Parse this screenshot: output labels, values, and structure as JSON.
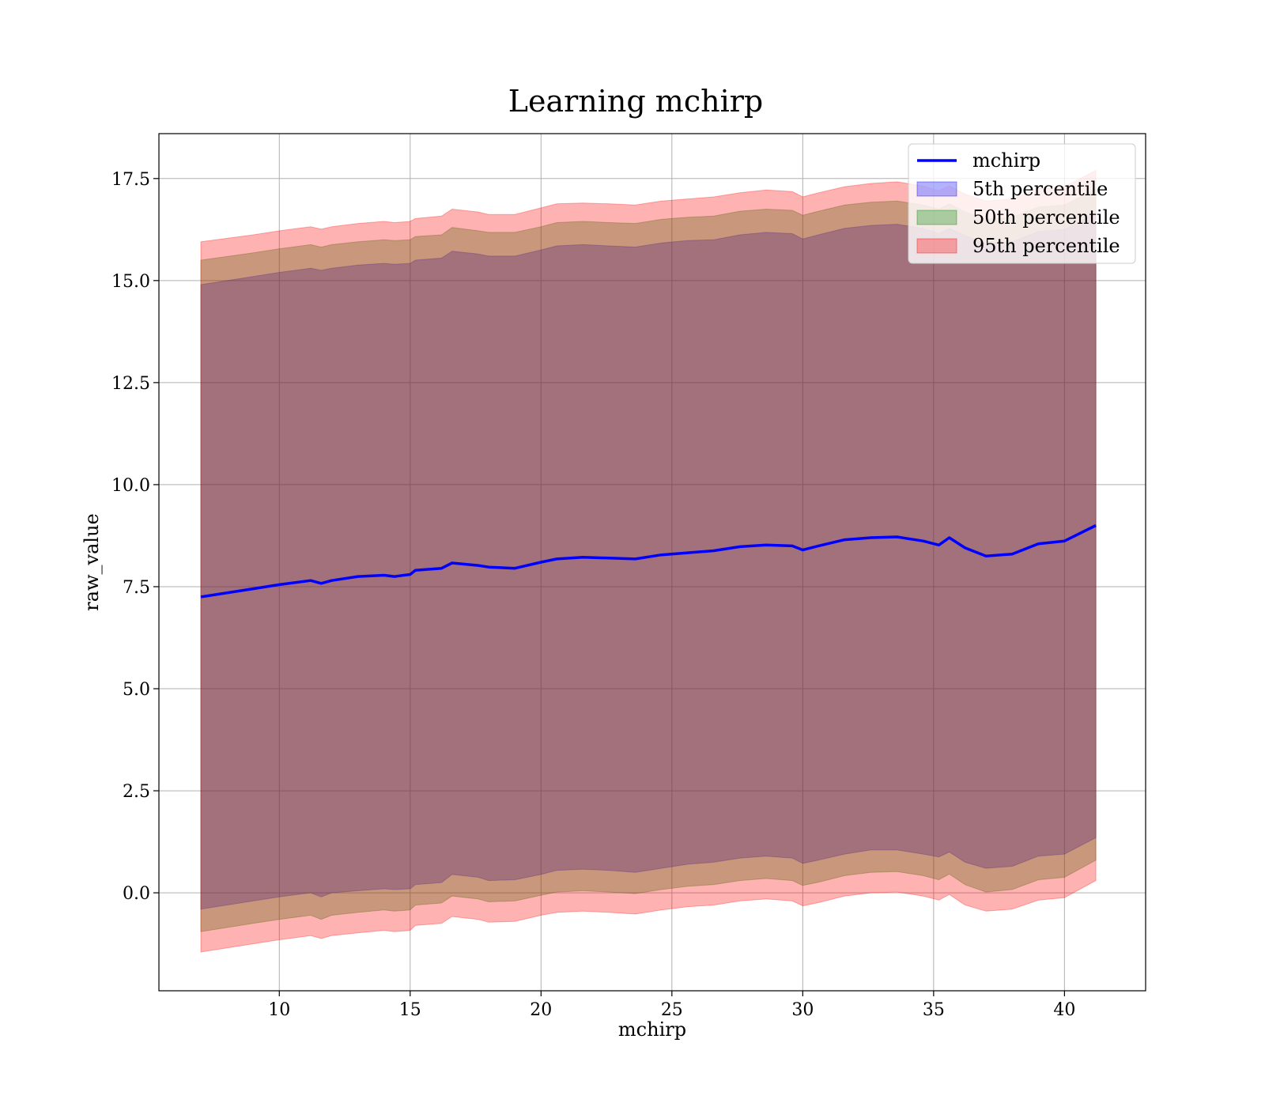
{
  "chart_data": {
    "type": "area",
    "title": "Learning mchirp",
    "xlabel": "mchirp",
    "ylabel": "raw_value",
    "xlim": [
      5.4,
      43.1
    ],
    "ylim": [
      -2.4,
      18.6
    ],
    "xticks": [
      10,
      15,
      20,
      25,
      30,
      35,
      40
    ],
    "yticks": [
      0.0,
      2.5,
      5.0,
      7.5,
      10.0,
      12.5,
      15.0,
      17.5
    ],
    "xtick_labels": [
      "10",
      "15",
      "20",
      "25",
      "30",
      "35",
      "40"
    ],
    "ytick_labels": [
      "0.0",
      "2.5",
      "5.0",
      "7.5",
      "10.0",
      "12.5",
      "15.0",
      "17.5"
    ],
    "grid": true,
    "legend_position": "top-right",
    "x": [
      7.0,
      9.0,
      10.0,
      11.2,
      11.6,
      12.0,
      13.0,
      14.0,
      14.4,
      15.0,
      15.2,
      16.2,
      16.6,
      17.6,
      18.0,
      19.0,
      20.0,
      20.6,
      21.6,
      22.6,
      23.6,
      24.6,
      25.6,
      26.6,
      27.6,
      28.6,
      29.6,
      30.0,
      30.6,
      31.6,
      32.6,
      33.6,
      34.6,
      35.2,
      35.6,
      36.2,
      37.0,
      38.0,
      39.0,
      40.0,
      41.2
    ],
    "series": [
      {
        "name": "mchirp",
        "role": "line",
        "color": "#0000ff",
        "values": [
          7.25,
          7.45,
          7.55,
          7.65,
          7.58,
          7.65,
          7.75,
          7.78,
          7.75,
          7.8,
          7.9,
          7.95,
          8.08,
          8.02,
          7.98,
          7.95,
          8.1,
          8.18,
          8.22,
          8.2,
          8.18,
          8.28,
          8.33,
          8.38,
          8.48,
          8.52,
          8.5,
          8.4,
          8.5,
          8.65,
          8.7,
          8.72,
          8.62,
          8.52,
          8.7,
          8.45,
          8.25,
          8.3,
          8.55,
          8.62,
          9.0
        ]
      },
      {
        "name": "5th percentile",
        "role": "band",
        "color": "#0000ff",
        "lower": [
          -0.4,
          -0.2,
          -0.1,
          0.0,
          -0.1,
          0.0,
          0.05,
          0.1,
          0.08,
          0.1,
          0.2,
          0.25,
          0.45,
          0.38,
          0.3,
          0.32,
          0.45,
          0.55,
          0.58,
          0.55,
          0.5,
          0.6,
          0.7,
          0.75,
          0.85,
          0.9,
          0.85,
          0.72,
          0.8,
          0.95,
          1.05,
          1.05,
          0.95,
          0.88,
          1.0,
          0.75,
          0.6,
          0.65,
          0.9,
          0.95,
          1.35
        ],
        "upper": [
          14.9,
          15.1,
          15.2,
          15.3,
          15.25,
          15.3,
          15.38,
          15.42,
          15.4,
          15.42,
          15.5,
          15.55,
          15.72,
          15.65,
          15.6,
          15.6,
          15.75,
          15.85,
          15.88,
          15.85,
          15.82,
          15.92,
          15.98,
          16.0,
          16.12,
          16.18,
          16.15,
          16.02,
          16.12,
          16.28,
          16.35,
          16.38,
          16.28,
          16.15,
          16.28,
          16.1,
          15.9,
          15.95,
          16.2,
          16.25,
          16.65
        ]
      },
      {
        "name": "50th percentile",
        "role": "band",
        "color": "#008000",
        "lower": [
          -0.95,
          -0.75,
          -0.65,
          -0.55,
          -0.65,
          -0.55,
          -0.48,
          -0.42,
          -0.45,
          -0.42,
          -0.3,
          -0.25,
          -0.08,
          -0.15,
          -0.22,
          -0.2,
          -0.06,
          0.02,
          0.05,
          0.02,
          -0.02,
          0.08,
          0.16,
          0.2,
          0.3,
          0.35,
          0.3,
          0.18,
          0.26,
          0.42,
          0.5,
          0.52,
          0.42,
          0.32,
          0.46,
          0.2,
          0.02,
          0.08,
          0.32,
          0.38,
          0.8
        ],
        "upper": [
          15.5,
          15.68,
          15.78,
          15.88,
          15.82,
          15.88,
          15.95,
          16.0,
          15.98,
          16.0,
          16.08,
          16.12,
          16.3,
          16.22,
          16.18,
          16.18,
          16.32,
          16.42,
          16.45,
          16.42,
          16.4,
          16.5,
          16.55,
          16.58,
          16.7,
          16.75,
          16.72,
          16.6,
          16.7,
          16.85,
          16.92,
          16.95,
          16.85,
          16.75,
          16.88,
          16.68,
          16.5,
          16.55,
          16.8,
          16.85,
          17.25
        ]
      },
      {
        "name": "95th percentile",
        "role": "band",
        "color": "#ff0000",
        "lower": [
          -1.45,
          -1.25,
          -1.15,
          -1.05,
          -1.12,
          -1.05,
          -0.98,
          -0.92,
          -0.95,
          -0.92,
          -0.8,
          -0.75,
          -0.58,
          -0.65,
          -0.72,
          -0.7,
          -0.55,
          -0.48,
          -0.45,
          -0.48,
          -0.52,
          -0.42,
          -0.34,
          -0.3,
          -0.2,
          -0.15,
          -0.2,
          -0.32,
          -0.24,
          -0.08,
          0.0,
          0.02,
          -0.08,
          -0.18,
          -0.04,
          -0.3,
          -0.45,
          -0.4,
          -0.18,
          -0.12,
          0.3
        ],
        "upper": [
          15.95,
          16.12,
          16.22,
          16.32,
          16.26,
          16.32,
          16.4,
          16.45,
          16.42,
          16.45,
          16.52,
          16.58,
          16.75,
          16.68,
          16.62,
          16.62,
          16.78,
          16.88,
          16.9,
          16.88,
          16.85,
          16.95,
          17.0,
          17.05,
          17.15,
          17.22,
          17.18,
          17.05,
          17.15,
          17.3,
          17.38,
          17.42,
          17.32,
          17.2,
          17.32,
          17.12,
          16.95,
          17.0,
          17.25,
          17.3,
          17.7
        ]
      }
    ]
  }
}
